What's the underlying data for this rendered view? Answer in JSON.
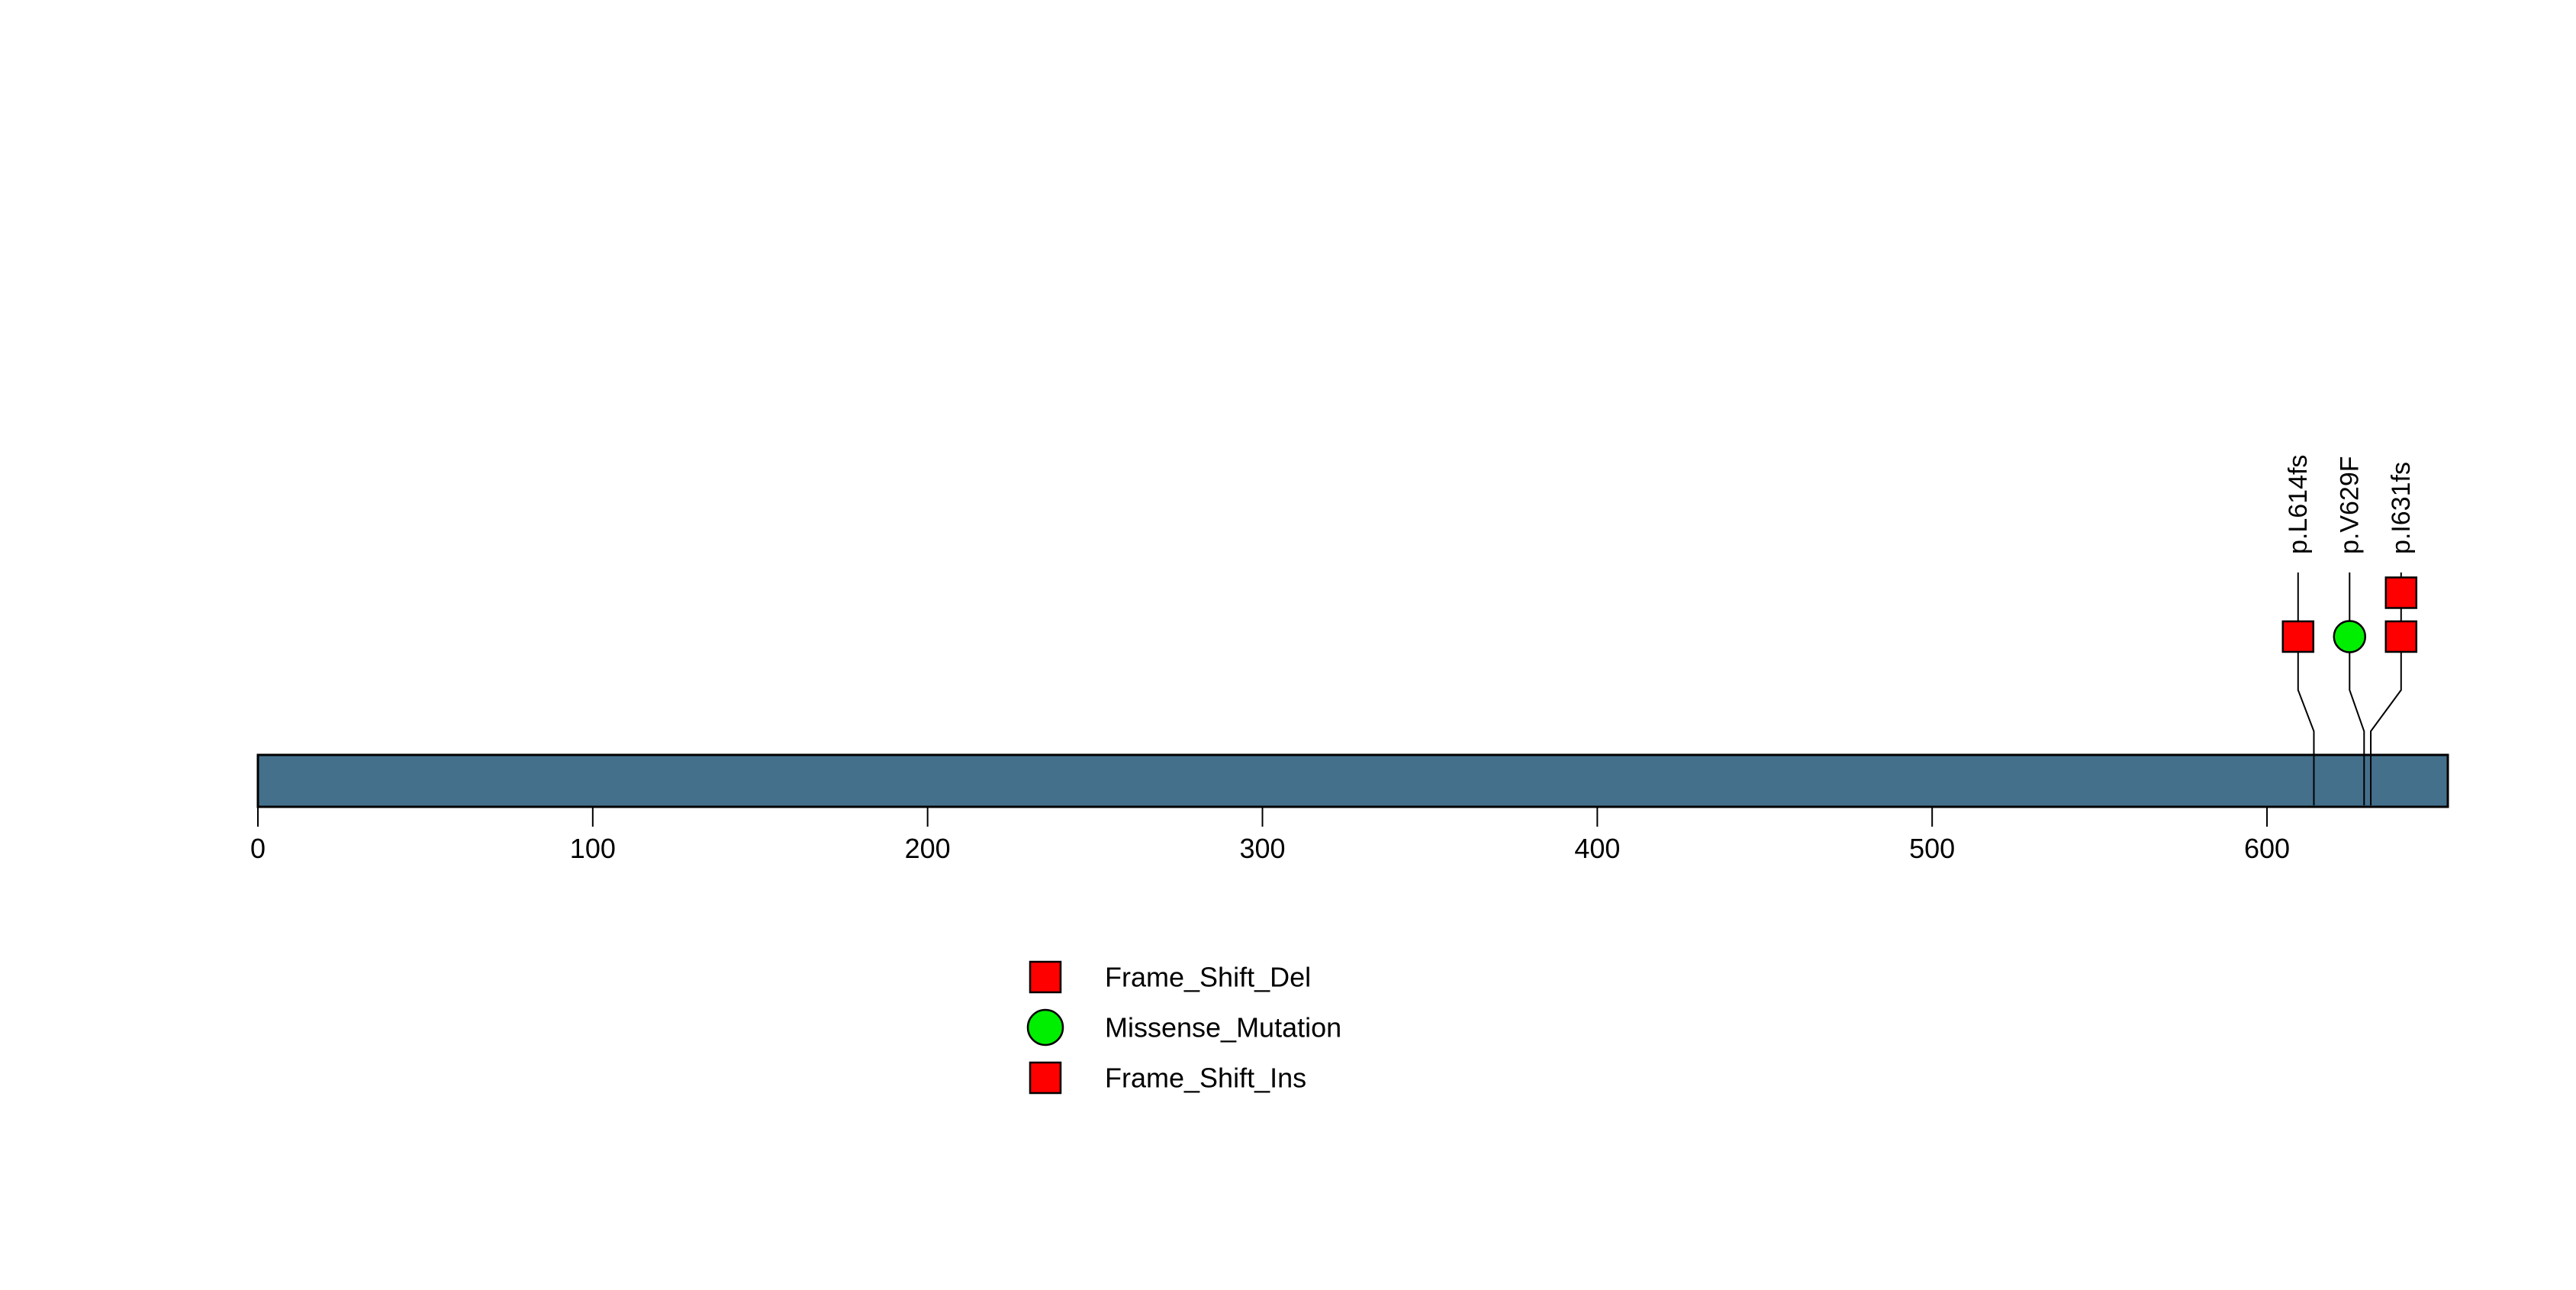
{
  "figure": {
    "background_color": "#ffffff"
  },
  "chart_data": {
    "type": "lollipop",
    "title": "",
    "xlabel": "",
    "ylabel": "",
    "grid": false,
    "axis": {
      "xmin": 0,
      "xmax": 654,
      "ticks": [
        0,
        100,
        200,
        300,
        400,
        500,
        600
      ]
    },
    "protein_bar": {
      "start": 0,
      "end": 654,
      "fill_color": "#44708C",
      "border_color": "#000000"
    },
    "mutations": [
      {
        "label": "p.L614fs",
        "position": 614,
        "markers": [
          {
            "shape": "square",
            "color": "#FF0000"
          }
        ]
      },
      {
        "label": "p.V629F",
        "position": 629,
        "markers": [
          {
            "shape": "circle",
            "color": "#00EE00"
          }
        ]
      },
      {
        "label": "p.I631fs",
        "position": 631,
        "markers": [
          {
            "shape": "square",
            "color": "#FF0000"
          },
          {
            "shape": "square",
            "color": "#FF0000"
          }
        ]
      }
    ],
    "legend": {
      "position": "bottom-center",
      "entries": [
        {
          "label": "Frame_Shift_Del",
          "shape": "square",
          "color": "#FF0000"
        },
        {
          "label": "Missense_Mutation",
          "shape": "circle",
          "color": "#00EE00"
        },
        {
          "label": "Frame_Shift_Ins",
          "shape": "square",
          "color": "#FF0000"
        }
      ]
    },
    "line_color": "#000000",
    "text_color": "#000000"
  }
}
